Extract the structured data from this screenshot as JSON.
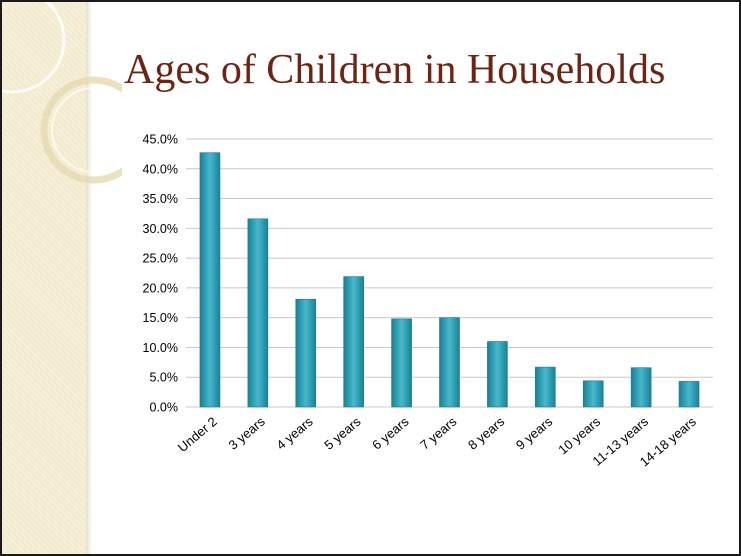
{
  "slide": {
    "title": "Ages of Children in Households"
  },
  "colors": {
    "title": "#6b2514",
    "bar": "#2e9fb5",
    "grid": "#c8c8c8",
    "side_band": "#f3ebcf"
  },
  "chart_data": {
    "type": "bar",
    "title": "Ages of Children in Households",
    "xlabel": "",
    "ylabel": "",
    "ylim": [
      0,
      45
    ],
    "ytick_step": 5,
    "ytick_format": "percent_1dp",
    "grid": true,
    "legend": "none",
    "categories": [
      "Under 2",
      "3 years",
      "4 years",
      "5 years",
      "6 years",
      "7 years",
      "8 years",
      "9 years",
      "10 years",
      "11-13 years",
      "14-18 years"
    ],
    "values": [
      42.7,
      31.6,
      18.1,
      21.9,
      14.8,
      15.0,
      11.0,
      6.7,
      4.4,
      6.6,
      4.3
    ]
  }
}
